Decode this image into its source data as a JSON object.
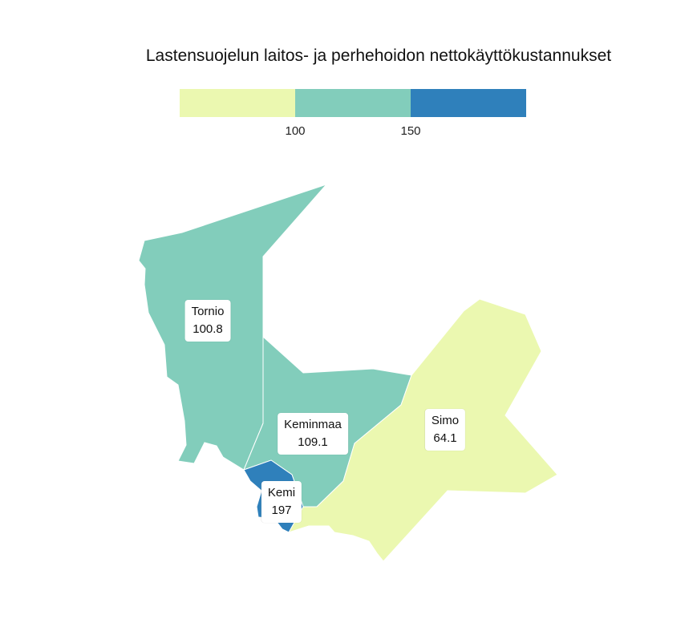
{
  "title": "Lastensuojelun laitos- ja perhehoidon nettokäyttökustannukset",
  "legend": {
    "colors": [
      "#ebf8b0",
      "#82cdbb",
      "#2f80bb"
    ],
    "ticks": [
      "100",
      "150"
    ]
  },
  "regions": [
    {
      "name": "Tornio",
      "value": "100.8",
      "color": "#82cdbb"
    },
    {
      "name": "Keminmaa",
      "value": "109.1",
      "color": "#82cdbb"
    },
    {
      "name": "Kemi",
      "value": "197",
      "color": "#2f80bb"
    },
    {
      "name": "Simo",
      "value": "64.1",
      "color": "#ebf8b0"
    }
  ]
}
